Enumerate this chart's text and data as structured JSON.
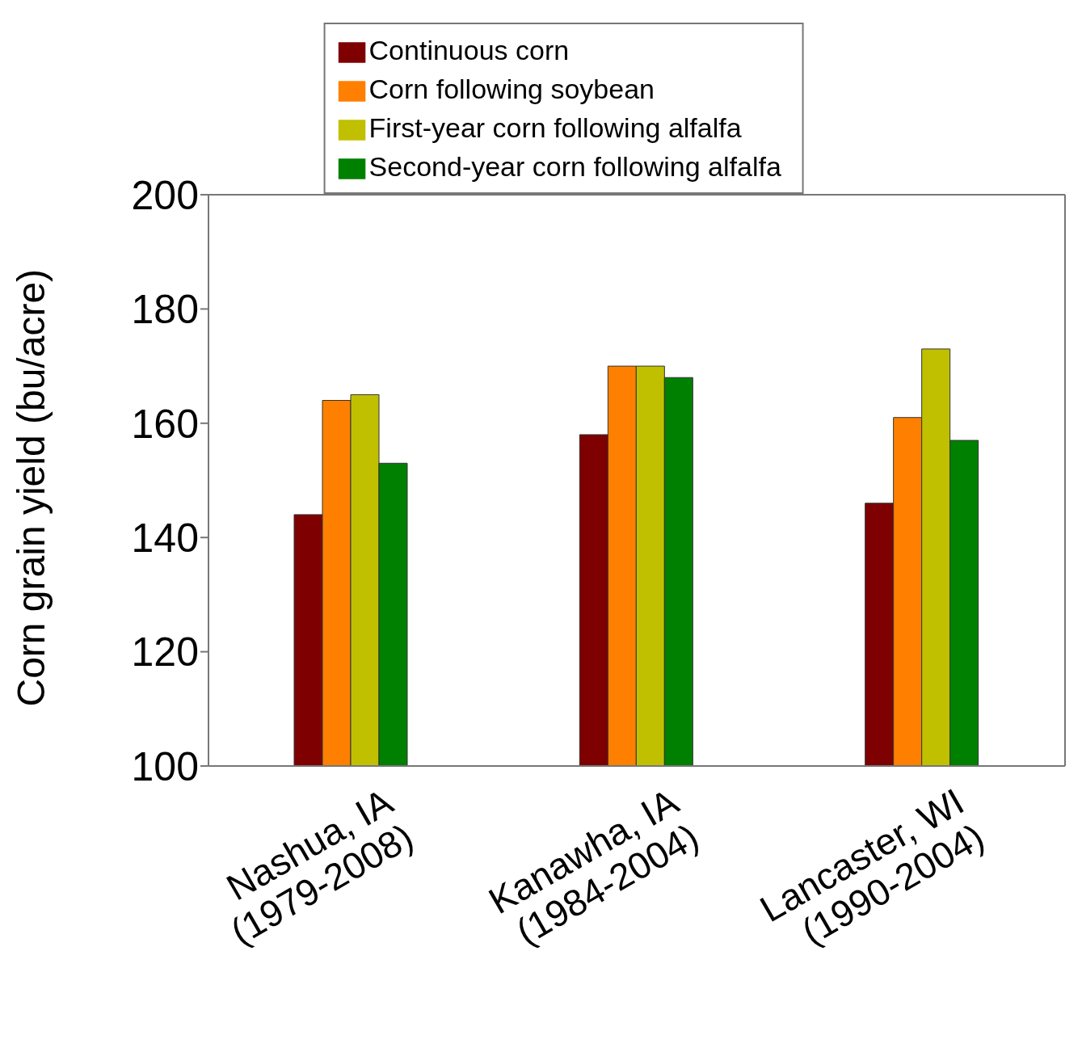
{
  "chart_data": {
    "type": "bar",
    "ylabel": "Corn grain yield (bu/acre)",
    "categories": [
      "Nashua, IA\n(1979-2008)",
      "Kanawha, IA\n(1984-2004)",
      "Lancaster, WI\n(1990-2004)"
    ],
    "series": [
      {
        "name": "Continuous corn",
        "color": "#7f0000",
        "values": [
          144,
          158,
          146
        ]
      },
      {
        "name": "Corn following soybean",
        "color": "#ff8000",
        "values": [
          164,
          170,
          161
        ]
      },
      {
        "name": "First-year corn following alfalfa",
        "color": "#c0c000",
        "values": [
          165,
          170,
          173
        ]
      },
      {
        "name": "Second-year corn following alfalfa",
        "color": "#008000",
        "values": [
          153,
          168,
          157
        ]
      }
    ],
    "ylim": [
      100,
      200
    ],
    "yticks": [
      100,
      120,
      140,
      160,
      180,
      200
    ],
    "grid": false,
    "legend": "top"
  }
}
